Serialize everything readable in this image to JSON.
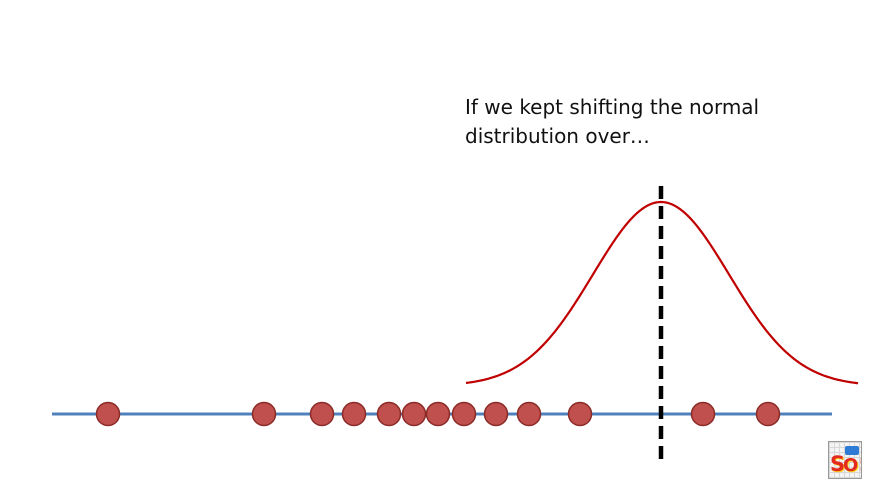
{
  "caption": {
    "line1": "If we kept shifting the normal",
    "line2": "distribution over…"
  },
  "colors": {
    "axis_line": "#4f81bd",
    "point_fill": "#c0504d",
    "point_stroke": "#8b2a27",
    "curve": "#c00000",
    "mean_line": "#000000"
  },
  "icons": {
    "logo": "statquest-logo-icon"
  }
}
